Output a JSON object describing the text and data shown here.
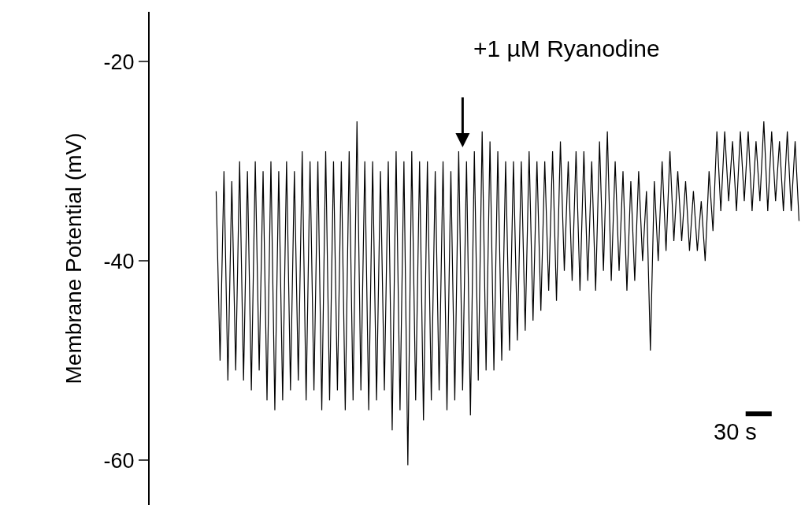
{
  "chart_data": {
    "type": "line",
    "ylabel": "Membrane Potential (mV)",
    "annotations": [
      "+1 µM Ryanodine",
      "30 s"
    ],
    "categories": [
      null,
      null,
      null,
      null,
      null,
      null,
      null,
      null,
      null,
      null,
      null,
      null,
      null,
      null,
      null,
      null,
      null,
      null,
      null,
      null,
      null,
      null,
      null,
      null,
      null,
      null,
      null,
      null,
      null,
      null,
      null,
      null,
      null,
      null,
      null,
      null,
      null,
      null,
      null,
      null,
      null,
      null,
      null,
      null,
      null,
      null,
      null,
      null,
      null,
      null,
      null,
      null,
      null,
      null,
      null,
      null,
      null,
      null,
      null,
      null,
      null,
      null,
      null,
      null,
      null,
      null,
      null,
      null,
      null,
      null,
      null,
      null,
      null,
      null,
      null,
      null,
      null,
      null,
      null,
      null,
      null,
      null,
      null,
      null,
      null,
      null,
      null,
      null,
      null,
      null,
      null,
      null,
      null,
      null,
      null,
      null,
      null,
      null,
      null,
      null,
      null,
      null,
      null,
      null,
      null,
      null,
      null,
      null,
      null,
      null,
      null,
      null,
      null,
      null,
      null,
      null,
      null,
      null,
      null,
      null,
      null,
      null,
      null,
      null,
      null,
      null,
      null,
      null,
      null,
      null,
      null,
      null,
      null,
      null,
      null,
      null,
      null,
      null,
      null,
      null,
      null,
      null,
      null,
      null,
      null,
      null,
      null,
      null,
      null,
      null
    ],
    "series": [
      {
        "color": "#000000",
        "values": [
          -33,
          -50,
          -31,
          -52,
          -32,
          -51,
          -30,
          -52,
          -31,
          -53,
          -30,
          -51,
          -31,
          -54,
          -30,
          -55,
          -31,
          -54,
          -30,
          -53,
          -31,
          -52,
          -29,
          -54,
          -30,
          -53,
          -30,
          -55,
          -29,
          -54,
          -30,
          -53,
          -30,
          -55,
          -29,
          -54,
          -26,
          -53,
          -30,
          -55,
          -30,
          -54,
          -31,
          -53,
          -30,
          -57,
          -29,
          -55,
          -30,
          -60.5,
          -29,
          -54,
          -30,
          -56,
          -30,
          -54,
          -31,
          -53,
          -30,
          -55,
          -31,
          -54,
          -29,
          -53,
          -30,
          -55.5,
          -29,
          -52,
          -27,
          -51,
          -28,
          -51,
          -29,
          -50,
          -30,
          -49,
          -30,
          -48,
          -30,
          -47,
          -29,
          -46,
          -30,
          -45,
          -30,
          -43,
          -29,
          -44,
          -28,
          -41,
          -30,
          -42,
          -29,
          -43,
          -29,
          -42,
          -30,
          -43,
          -28,
          -41,
          -27,
          -42,
          -30,
          -41,
          -31,
          -43,
          -32,
          -42,
          -31,
          -40,
          -33,
          -49,
          -32,
          -40,
          -30,
          -39,
          -29,
          -38,
          -31,
          -38,
          -32,
          -39,
          -33,
          -39,
          -34,
          -40,
          -31,
          -37,
          -27,
          -35,
          -27,
          -34,
          -28,
          -35,
          -27,
          -34,
          -27,
          -35,
          -28,
          -34,
          -26,
          -35,
          -27,
          -34,
          -28,
          -35,
          -27,
          -35,
          -28,
          -36
        ]
      }
    ],
    "ylim": [
      -64.5,
      -15
    ],
    "yticks": [
      -20,
      -40,
      -60
    ],
    "tick_labels": "y",
    "legend": false,
    "marker": "none",
    "line_style": "solid"
  }
}
